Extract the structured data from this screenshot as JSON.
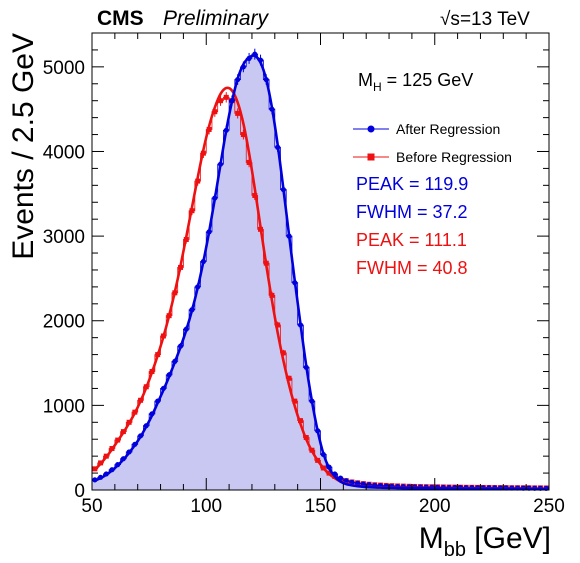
{
  "header": {
    "experiment": "CMS",
    "status": "Preliminary",
    "energy_symbol": "√s",
    "energy_value": "=13 TeV"
  },
  "annotations": {
    "mass_label_main": "M",
    "mass_label_sub": "H",
    "mass_label_value": " = 125 GeV",
    "after_peak": "PEAK = 119.9",
    "after_fwhm": "FWHM = 37.2",
    "before_peak": "PEAK = 111.1",
    "before_fwhm": "FWHM = 40.8"
  },
  "colors": {
    "after": "#0000dd",
    "before": "#ee1111",
    "fill": "#c8c8f2"
  },
  "chart_data": {
    "type": "line",
    "title": "",
    "xlabel_main": "M",
    "xlabel_sub": "bb",
    "xlabel_unit": " [GeV]",
    "ylabel": "Events / 2.5 GeV",
    "xlim": [
      50,
      250
    ],
    "ylim": [
      0,
      5400
    ],
    "xticks": [
      50,
      100,
      150,
      200,
      250
    ],
    "yticks": [
      0,
      1000,
      2000,
      3000,
      4000,
      5000
    ],
    "legend_position": "top-right",
    "x": [
      51.25,
      53.75,
      56.25,
      58.75,
      61.25,
      63.75,
      66.25,
      68.75,
      71.25,
      73.75,
      76.25,
      78.75,
      81.25,
      83.75,
      86.25,
      88.75,
      91.25,
      93.75,
      96.25,
      98.75,
      101.25,
      103.75,
      106.25,
      108.75,
      111.25,
      113.75,
      116.25,
      118.75,
      121.25,
      123.75,
      126.25,
      128.75,
      131.25,
      133.75,
      136.25,
      138.75,
      141.25,
      143.75,
      146.25,
      148.75,
      151.25,
      153.75,
      156.25,
      158.75,
      161.25,
      163.75,
      166.25,
      168.75,
      171.25,
      173.75,
      176.25,
      178.75,
      181.25,
      183.75,
      186.25,
      188.75,
      191.25,
      193.75,
      196.25,
      198.75,
      201.25,
      203.75,
      206.25,
      208.75,
      211.25,
      213.75,
      216.25,
      218.75,
      221.25,
      223.75,
      226.25,
      228.75,
      231.25,
      233.75,
      236.25,
      238.75,
      241.25,
      243.75,
      246.25,
      248.75
    ],
    "series": [
      {
        "name": "After Regression",
        "marker": "circle",
        "values": [
          120,
          150,
          190,
          240,
          300,
          370,
          450,
          540,
          640,
          760,
          900,
          1050,
          1200,
          1360,
          1520,
          1700,
          1900,
          2130,
          2400,
          2700,
          3050,
          3450,
          3850,
          4250,
          4600,
          4850,
          5000,
          5100,
          5150,
          5080,
          4850,
          4500,
          4050,
          3550,
          3000,
          2450,
          1950,
          1450,
          1050,
          700,
          420,
          270,
          190,
          140,
          110,
          90,
          80,
          70,
          62,
          55,
          50,
          45,
          42,
          40,
          38,
          36,
          35,
          34,
          33,
          32,
          31,
          30,
          29,
          28,
          28,
          27,
          27,
          26,
          26,
          25,
          25,
          24,
          24,
          23,
          23,
          22,
          22,
          21,
          21,
          20
        ],
        "fit": [
          110,
          140,
          180,
          230,
          290,
          360,
          440,
          530,
          630,
          750,
          880,
          1030,
          1180,
          1340,
          1510,
          1690,
          1890,
          2120,
          2390,
          2700,
          3050,
          3440,
          3850,
          4250,
          4590,
          4860,
          5030,
          5110,
          5130,
          5050,
          4850,
          4520,
          4080,
          3560,
          3010,
          2470,
          1960,
          1470,
          1050,
          700,
          430,
          260,
          160,
          100,
          70,
          55,
          45,
          38,
          33,
          30,
          28,
          26,
          25,
          24,
          23,
          22,
          21,
          20,
          20,
          19,
          19,
          18,
          18,
          17,
          17,
          16,
          16,
          15,
          15,
          15,
          14,
          14,
          14,
          13,
          13,
          13,
          12,
          12,
          12,
          11
        ]
      },
      {
        "name": "Before Regression",
        "marker": "square",
        "values": [
          250,
          320,
          400,
          490,
          590,
          690,
          800,
          920,
          1060,
          1220,
          1400,
          1600,
          1820,
          2060,
          2330,
          2630,
          2960,
          3300,
          3650,
          3980,
          4260,
          4470,
          4600,
          4640,
          4600,
          4450,
          4200,
          3870,
          3480,
          3080,
          2680,
          2300,
          1950,
          1620,
          1320,
          1050,
          820,
          620,
          470,
          350,
          260,
          200,
          160,
          130,
          110,
          95,
          85,
          75,
          68,
          62,
          58,
          54,
          51,
          48,
          46,
          44,
          42,
          40,
          39,
          38,
          37,
          36,
          35,
          34,
          33,
          32,
          32,
          31,
          30,
          30,
          29,
          28,
          28,
          27,
          27,
          26,
          26,
          25,
          25,
          24
        ],
        "fit": [
          240,
          310,
          390,
          480,
          580,
          680,
          790,
          910,
          1050,
          1210,
          1390,
          1590,
          1810,
          2060,
          2340,
          2650,
          2990,
          3340,
          3690,
          4020,
          4300,
          4520,
          4680,
          4750,
          4720,
          4580,
          4330,
          3980,
          3560,
          3110,
          2660,
          2240,
          1860,
          1530,
          1240,
          990,
          780,
          600,
          460,
          350,
          260,
          190,
          140,
          100,
          75,
          58,
          48,
          41,
          36,
          33,
          31,
          29,
          28,
          27,
          26,
          25,
          24,
          23,
          23,
          22,
          22,
          21,
          21,
          20,
          20,
          19,
          19,
          18,
          18,
          18,
          17,
          17,
          17,
          16,
          16,
          16,
          15,
          15,
          15,
          14
        ]
      }
    ]
  }
}
